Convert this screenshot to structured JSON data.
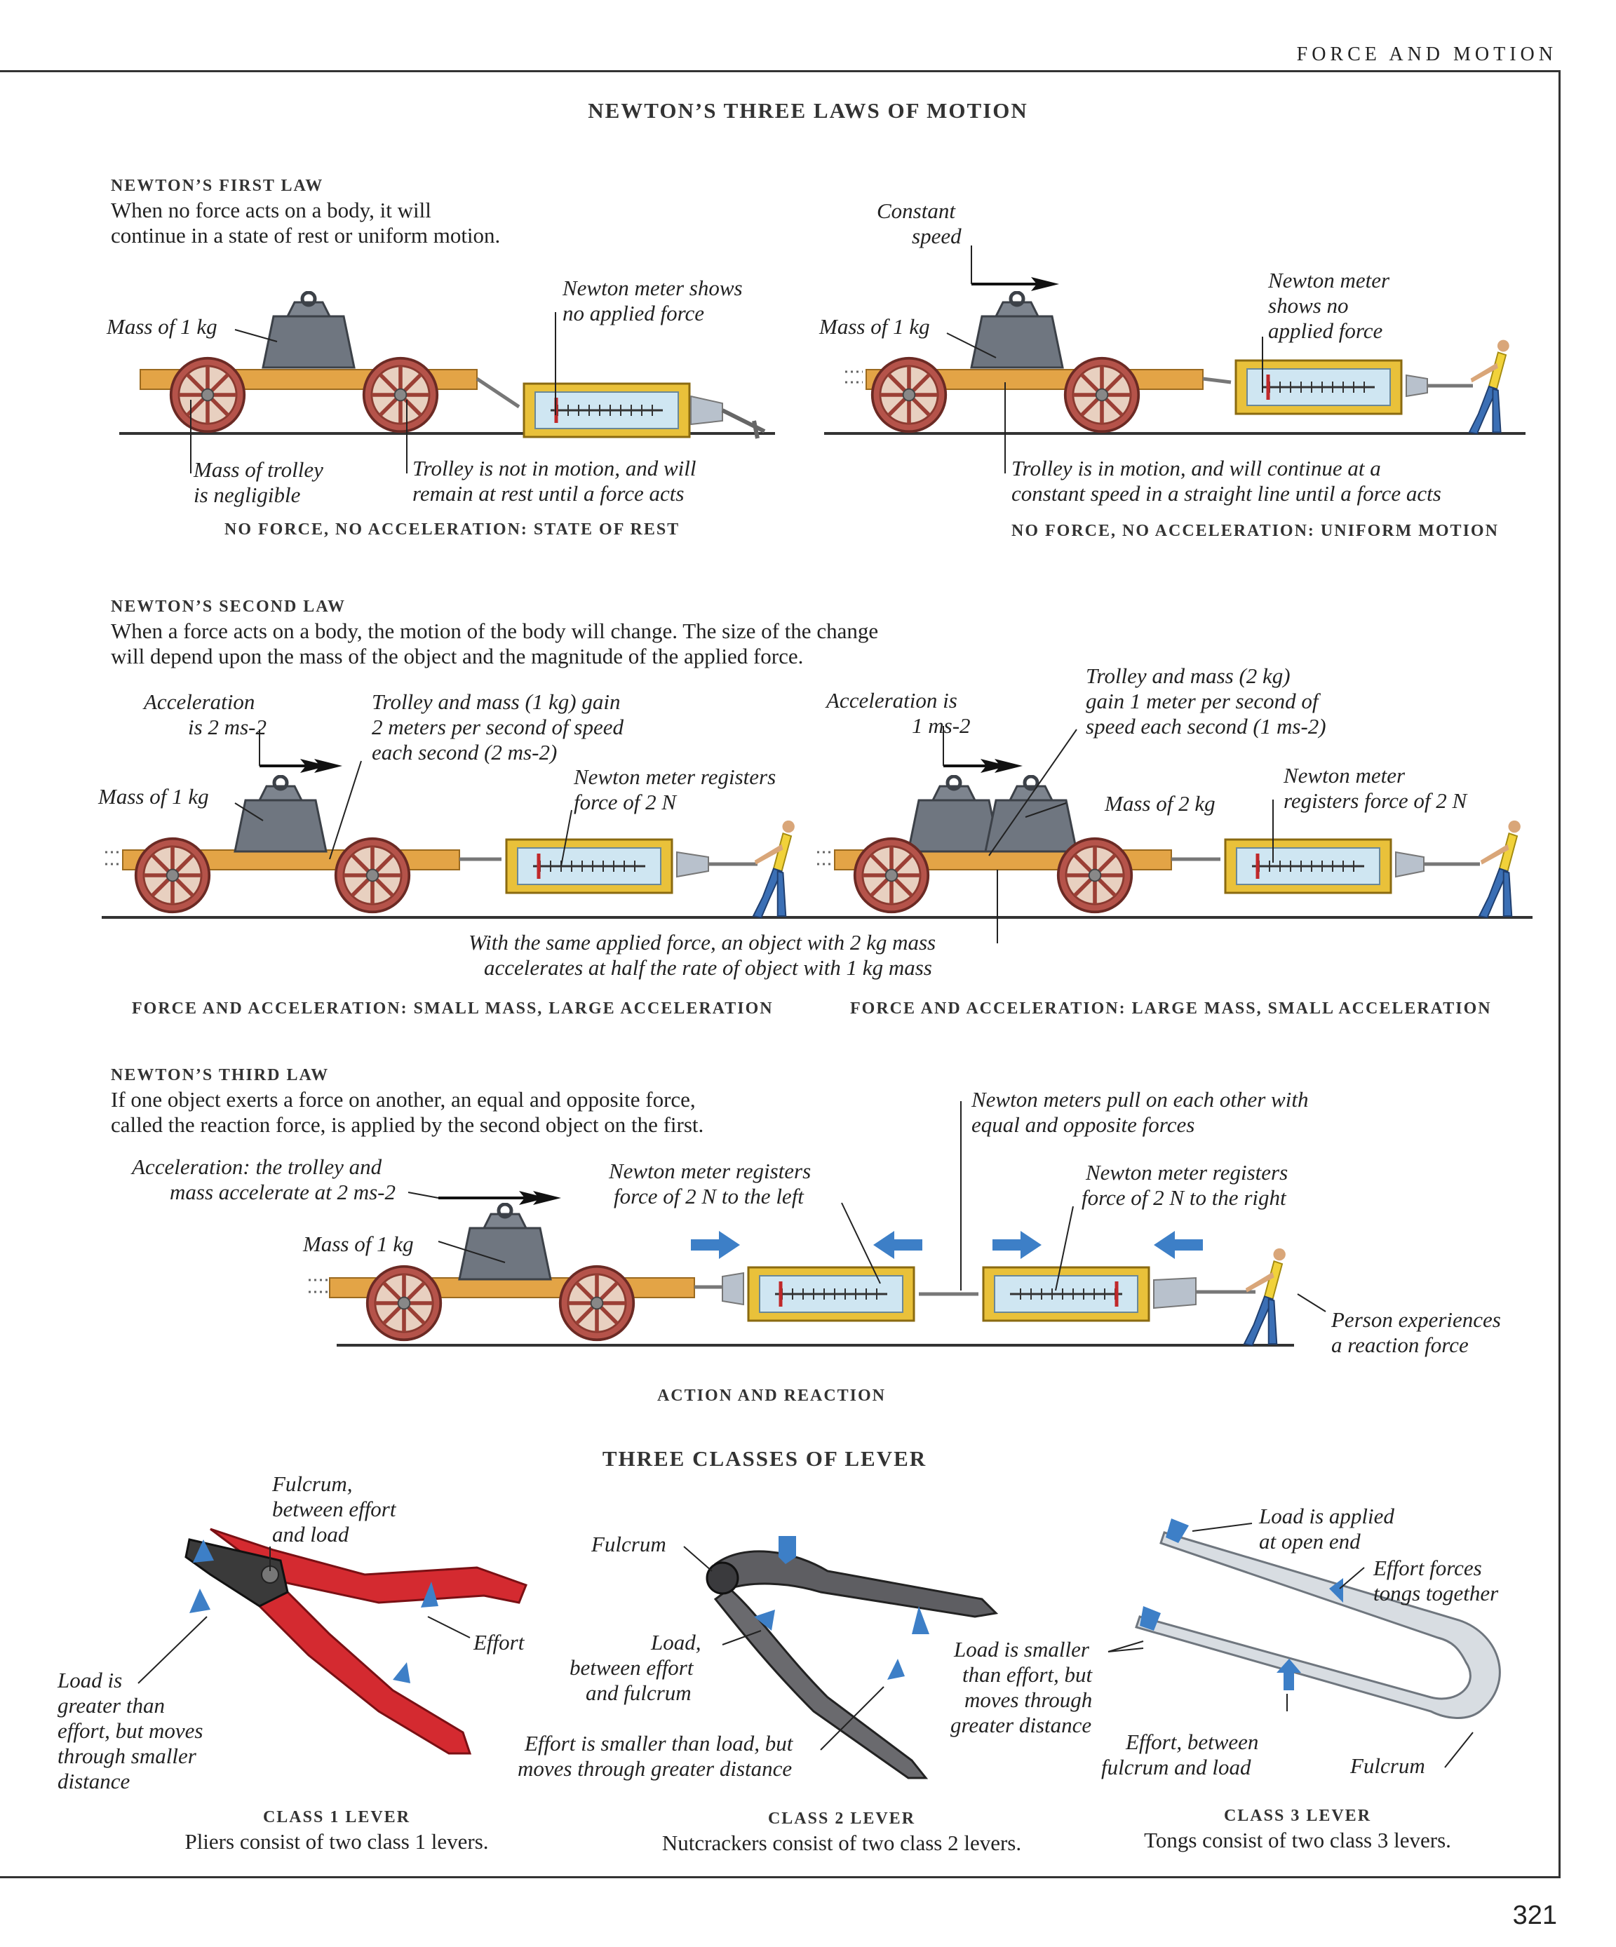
{
  "header": "FORCE AND MOTION",
  "page_number": "321",
  "section1": {
    "title": "NEWTON’S THREE LAWS OF MOTION",
    "first_law": {
      "heading": "NEWTON’S FIRST LAW",
      "text1": "When no force acts on a body, it will",
      "text2": "continue in a state of rest or uniform motion.",
      "left": {
        "mass": "Mass of 1 kg",
        "meter": [
          "Newton meter shows",
          "no applied force"
        ],
        "trolley_mass": [
          "Mass of  trolley",
          "is negligible"
        ],
        "rest": [
          "Trolley is not in motion, and will",
          "remain at rest until a force acts"
        ],
        "caption": "NO FORCE, NO ACCELERATION: STATE OF REST"
      },
      "right": {
        "speed": [
          "Constant",
          "speed"
        ],
        "mass": "Mass of 1 kg",
        "meter": [
          "Newton meter",
          "shows no",
          "applied force"
        ],
        "motion": [
          "Trolley is in motion, and will continue at a",
          "constant speed in a straight line until a force acts"
        ],
        "caption": "NO FORCE, NO ACCELERATION: UNIFORM MOTION"
      }
    },
    "second_law": {
      "heading": "NEWTON’S SECOND LAW",
      "text1": "When a force acts on a body, the motion of the body will change. The size of the change",
      "text2": "will depend upon the mass of the object and the magnitude of the applied force.",
      "left": {
        "accel": [
          "Acceleration",
          "is 2 ms-2"
        ],
        "gain": [
          "Trolley and mass (1 kg) gain",
          "2 meters per second of  speed",
          "each second (2 ms-2)"
        ],
        "mass": "Mass of  1 kg",
        "meter": [
          "Newton meter registers",
          "force of  2 N"
        ],
        "caption": "FORCE AND ACCELERATION: SMALL MASS, LARGE ACCELERATION"
      },
      "right": {
        "accel": [
          "Acceleration is",
          "1 ms-2"
        ],
        "gain": [
          "Trolley and mass (2 kg)",
          "gain 1 meter per second of",
          "speed each second (1 ms-2)"
        ],
        "mass": "Mass of  2 kg",
        "meter": [
          "Newton meter",
          "registers force of  2 N"
        ],
        "caption": "FORCE AND ACCELERATION: LARGE MASS, SMALL ACCELERATION"
      },
      "note": [
        "With the same applied force, an object with 2 kg mass",
        "accelerates at half  the rate of  object with 1 kg mass"
      ]
    },
    "third_law": {
      "heading": "NEWTON’S THIRD LAW",
      "text1": "If one object exerts a force on another, an equal and opposite force,",
      "text2": "called the reaction force, is applied by the second object on the first.",
      "accel": [
        "Acceleration: the trolley and",
        "mass accelerate at 2 ms-2"
      ],
      "mass": "Mass of  1 kg",
      "meter_left": [
        "Newton meter registers",
        "force of  2 N to the left"
      ],
      "meters_pull": [
        "Newton meters pull on each other with",
        "equal and opposite forces"
      ],
      "meter_right": [
        "Newton meter registers",
        "force of  2 N to the right"
      ],
      "person": [
        "Person experiences",
        "a reaction force"
      ],
      "caption": "ACTION AND REACTION"
    }
  },
  "section2": {
    "title": "THREE CLASSES OF LEVER",
    "class1": {
      "fulcrum": [
        "Fulcrum,",
        "between effort",
        "and load"
      ],
      "effort": "Effort",
      "load": [
        "Load is",
        "greater than",
        "effort, but moves",
        "through smaller",
        "distance"
      ],
      "title": "CLASS 1 LEVER",
      "desc": "Pliers consist of two class 1 levers."
    },
    "class2": {
      "fulcrum": "Fulcrum",
      "load": [
        "Load,",
        "between effort",
        "and fulcrum"
      ],
      "effort": [
        "Effort is smaller than load, but",
        "moves through greater distance"
      ],
      "load_smaller": [
        "Load is smaller",
        "than effort, but",
        "moves through",
        "greater distance"
      ],
      "title": "CLASS 2 LEVER",
      "desc": "Nutcrackers consist of two class 2 levers."
    },
    "class3": {
      "load": [
        "Load is applied",
        "at open end"
      ],
      "effort_forces": [
        "Effort forces",
        "tongs together"
      ],
      "effort": [
        "Effort, between",
        "fulcrum and load"
      ],
      "fulcrum": "Fulcrum",
      "title": "CLASS 3 LEVER",
      "desc": "Tongs consist of two class 3 levers."
    }
  }
}
